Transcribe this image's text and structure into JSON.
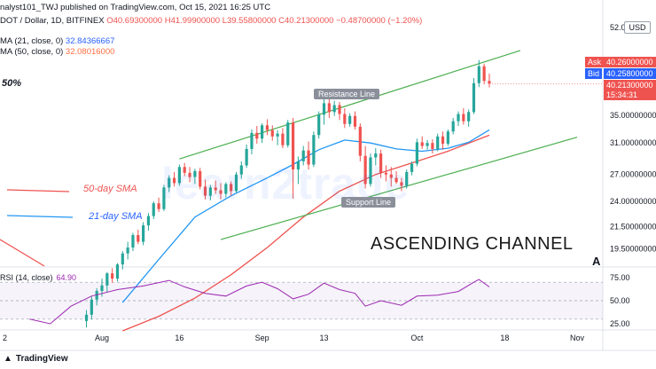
{
  "header": {
    "line1": "nalyst101_TWJ published on TradingView.com, Oct 15, 2021 16:25 UTC",
    "symbol": "DOT / Dollar, 1D, BITFINEX",
    "ohlc": {
      "o": "O40.69300000",
      "h": "H41.99900000",
      "l": "L39.55800000",
      "c": "C40.21300000",
      "chg": "−0.48700000 (−1.20%)"
    },
    "ma21_label": "MA (21, close, 0)",
    "ma21_value": "32.84366667",
    "ma50_label": "MA (50, close, 0)",
    "ma50_value": "32.08016000",
    "pct_label": "50%"
  },
  "price_scale": {
    "currency": "USD",
    "ask_label": "Ask",
    "ask_value": "40.26000000",
    "bid_label": "Bid",
    "bid_value": "40.25800000",
    "last_value": "40.21300000",
    "countdown": "15:34:31"
  },
  "annotations": {
    "channel": "ASCENDING CHANNEL",
    "sma50": "50-day SMA",
    "sma21": "21-day SMA",
    "resistance": "Resistance Line",
    "support": "Support Line",
    "marker": "A",
    "watermark": "learn2trade"
  },
  "rsi": {
    "label": "RSI (14, close)",
    "value": "64.90"
  },
  "footer": {
    "brand": "TradingView"
  },
  "colors": {
    "up": "#26a69a",
    "down": "#ef5350",
    "ma21": "#2196f3",
    "ma50": "#ef5350",
    "channel": "#4caf50",
    "rsi": "#9c27b0"
  },
  "chart_data": {
    "type": "candlestick",
    "title": "DOT / Dollar, 1D, BITFINEX",
    "y_ticks": [
      "52.0",
      "40.26000000",
      "35.00000000",
      "31.00000000",
      "27.00000000",
      "24.00000000",
      "21.50000000",
      "19.50000000"
    ],
    "y_tick_values": [
      52.0,
      40.26,
      35.0,
      31.0,
      27.0,
      24.0,
      21.5,
      19.5
    ],
    "y_scale": "log",
    "x_ticks": [
      "2",
      "Aug",
      "16",
      "Sep",
      "13",
      "Oct",
      "18",
      "Nov"
    ],
    "candles": [
      {
        "date": "2021-07-29",
        "o": 14.2,
        "h": 14.9,
        "l": 13.8,
        "c": 14.6
      },
      {
        "date": "2021-07-30",
        "o": 14.6,
        "h": 15.8,
        "l": 14.3,
        "c": 15.6
      },
      {
        "date": "2021-07-31",
        "o": 15.6,
        "h": 16.4,
        "l": 15.2,
        "c": 16.2
      },
      {
        "date": "2021-08-01",
        "o": 16.2,
        "h": 17.1,
        "l": 15.8,
        "c": 16.6
      },
      {
        "date": "2021-08-02",
        "o": 16.6,
        "h": 17.6,
        "l": 16.1,
        "c": 17.5
      },
      {
        "date": "2021-08-03",
        "o": 17.5,
        "h": 17.9,
        "l": 16.8,
        "c": 17.1
      },
      {
        "date": "2021-08-04",
        "o": 17.1,
        "h": 18.3,
        "l": 16.9,
        "c": 18.2
      },
      {
        "date": "2021-08-05",
        "o": 18.2,
        "h": 19.3,
        "l": 17.8,
        "c": 19.1
      },
      {
        "date": "2021-08-06",
        "o": 19.1,
        "h": 20.1,
        "l": 18.6,
        "c": 19.6
      },
      {
        "date": "2021-08-07",
        "o": 19.6,
        "h": 20.9,
        "l": 19.3,
        "c": 20.7
      },
      {
        "date": "2021-08-08",
        "o": 20.7,
        "h": 21.2,
        "l": 19.9,
        "c": 20.1
      },
      {
        "date": "2021-08-09",
        "o": 20.1,
        "h": 21.9,
        "l": 19.8,
        "c": 21.6
      },
      {
        "date": "2021-08-10",
        "o": 21.6,
        "h": 22.8,
        "l": 21.1,
        "c": 22.5
      },
      {
        "date": "2021-08-11",
        "o": 22.5,
        "h": 24.0,
        "l": 22.2,
        "c": 23.8
      },
      {
        "date": "2021-08-12",
        "o": 23.8,
        "h": 24.4,
        "l": 22.9,
        "c": 23.2
      },
      {
        "date": "2021-08-13",
        "o": 23.2,
        "h": 25.8,
        "l": 23.0,
        "c": 25.5
      },
      {
        "date": "2021-08-14",
        "o": 25.5,
        "h": 26.9,
        "l": 25.0,
        "c": 26.6
      },
      {
        "date": "2021-08-15",
        "o": 26.6,
        "h": 27.3,
        "l": 25.6,
        "c": 26.0
      },
      {
        "date": "2021-08-16",
        "o": 26.0,
        "h": 28.2,
        "l": 25.7,
        "c": 27.9
      },
      {
        "date": "2021-08-17",
        "o": 27.9,
        "h": 28.4,
        "l": 26.8,
        "c": 27.2
      },
      {
        "date": "2021-08-18",
        "o": 27.2,
        "h": 27.9,
        "l": 26.1,
        "c": 26.7
      },
      {
        "date": "2021-08-19",
        "o": 26.7,
        "h": 27.7,
        "l": 25.9,
        "c": 27.4
      },
      {
        "date": "2021-08-20",
        "o": 27.4,
        "h": 27.8,
        "l": 25.3,
        "c": 25.6
      },
      {
        "date": "2021-08-21",
        "o": 25.6,
        "h": 26.4,
        "l": 24.2,
        "c": 24.6
      },
      {
        "date": "2021-08-22",
        "o": 24.6,
        "h": 25.8,
        "l": 24.1,
        "c": 25.5
      },
      {
        "date": "2021-08-23",
        "o": 25.5,
        "h": 26.3,
        "l": 24.8,
        "c": 25.2
      },
      {
        "date": "2021-08-24",
        "o": 25.2,
        "h": 26.0,
        "l": 24.2,
        "c": 24.8
      },
      {
        "date": "2021-08-25",
        "o": 24.8,
        "h": 26.1,
        "l": 24.4,
        "c": 25.9
      },
      {
        "date": "2021-08-26",
        "o": 25.9,
        "h": 26.2,
        "l": 24.6,
        "c": 25.1
      },
      {
        "date": "2021-08-27",
        "o": 25.1,
        "h": 27.3,
        "l": 24.9,
        "c": 27.0
      },
      {
        "date": "2021-08-28",
        "o": 27.0,
        "h": 28.6,
        "l": 26.5,
        "c": 28.1
      },
      {
        "date": "2021-08-29",
        "o": 28.1,
        "h": 30.8,
        "l": 27.8,
        "c": 30.2
      },
      {
        "date": "2021-08-30",
        "o": 30.2,
        "h": 32.9,
        "l": 29.5,
        "c": 32.4
      },
      {
        "date": "2021-08-31",
        "o": 32.4,
        "h": 33.4,
        "l": 30.9,
        "c": 31.6
      },
      {
        "date": "2021-09-01",
        "o": 31.6,
        "h": 33.8,
        "l": 31.0,
        "c": 33.5
      },
      {
        "date": "2021-09-02",
        "o": 33.5,
        "h": 34.4,
        "l": 32.1,
        "c": 32.8
      },
      {
        "date": "2021-09-03",
        "o": 32.8,
        "h": 33.5,
        "l": 31.3,
        "c": 31.9
      },
      {
        "date": "2021-09-04",
        "o": 31.9,
        "h": 32.8,
        "l": 30.7,
        "c": 32.3
      },
      {
        "date": "2021-09-05",
        "o": 32.3,
        "h": 33.1,
        "l": 30.3,
        "c": 30.7
      },
      {
        "date": "2021-09-06",
        "o": 30.7,
        "h": 34.3,
        "l": 30.4,
        "c": 33.9
      },
      {
        "date": "2021-09-07",
        "o": 33.9,
        "h": 34.6,
        "l": 24.3,
        "c": 27.6
      },
      {
        "date": "2021-09-08",
        "o": 27.6,
        "h": 29.2,
        "l": 25.9,
        "c": 28.6
      },
      {
        "date": "2021-09-09",
        "o": 28.6,
        "h": 30.6,
        "l": 28.1,
        "c": 30.0
      },
      {
        "date": "2021-09-10",
        "o": 30.0,
        "h": 31.2,
        "l": 27.6,
        "c": 28.2
      },
      {
        "date": "2021-09-11",
        "o": 28.2,
        "h": 32.6,
        "l": 27.9,
        "c": 32.1
      },
      {
        "date": "2021-09-12",
        "o": 32.1,
        "h": 35.6,
        "l": 31.6,
        "c": 35.1
      },
      {
        "date": "2021-09-13",
        "o": 35.1,
        "h": 37.9,
        "l": 33.6,
        "c": 36.9
      },
      {
        "date": "2021-09-14",
        "o": 36.9,
        "h": 37.6,
        "l": 34.6,
        "c": 35.5
      },
      {
        "date": "2021-09-15",
        "o": 35.5,
        "h": 37.3,
        "l": 34.9,
        "c": 36.6
      },
      {
        "date": "2021-09-16",
        "o": 36.6,
        "h": 37.1,
        "l": 34.3,
        "c": 35.2
      },
      {
        "date": "2021-09-17",
        "o": 35.2,
        "h": 36.1,
        "l": 33.1,
        "c": 33.7
      },
      {
        "date": "2021-09-18",
        "o": 33.7,
        "h": 35.3,
        "l": 33.3,
        "c": 34.9
      },
      {
        "date": "2021-09-19",
        "o": 34.9,
        "h": 35.6,
        "l": 32.9,
        "c": 33.3
      },
      {
        "date": "2021-09-20",
        "o": 33.3,
        "h": 33.8,
        "l": 28.6,
        "c": 29.3
      },
      {
        "date": "2021-09-21",
        "o": 29.3,
        "h": 30.6,
        "l": 25.4,
        "c": 25.9
      },
      {
        "date": "2021-09-22",
        "o": 25.9,
        "h": 29.6,
        "l": 25.6,
        "c": 29.1
      },
      {
        "date": "2021-09-23",
        "o": 29.1,
        "h": 30.3,
        "l": 28.1,
        "c": 29.6
      },
      {
        "date": "2021-09-24",
        "o": 29.6,
        "h": 30.1,
        "l": 26.6,
        "c": 27.2
      },
      {
        "date": "2021-09-25",
        "o": 27.2,
        "h": 28.1,
        "l": 26.2,
        "c": 27.0
      },
      {
        "date": "2021-09-26",
        "o": 27.0,
        "h": 27.9,
        "l": 25.6,
        "c": 26.6
      },
      {
        "date": "2021-09-27",
        "o": 26.6,
        "h": 27.4,
        "l": 25.9,
        "c": 26.1
      },
      {
        "date": "2021-09-28",
        "o": 26.1,
        "h": 26.6,
        "l": 25.1,
        "c": 25.7
      },
      {
        "date": "2021-09-29",
        "o": 25.7,
        "h": 27.6,
        "l": 25.4,
        "c": 27.3
      },
      {
        "date": "2021-09-30",
        "o": 27.3,
        "h": 28.6,
        "l": 26.9,
        "c": 28.3
      },
      {
        "date": "2021-10-01",
        "o": 28.3,
        "h": 31.6,
        "l": 28.0,
        "c": 31.1
      },
      {
        "date": "2021-10-02",
        "o": 31.1,
        "h": 31.9,
        "l": 30.2,
        "c": 30.6
      },
      {
        "date": "2021-10-03",
        "o": 30.6,
        "h": 31.4,
        "l": 30.1,
        "c": 31.0
      },
      {
        "date": "2021-10-04",
        "o": 31.0,
        "h": 31.5,
        "l": 29.6,
        "c": 30.2
      },
      {
        "date": "2021-10-05",
        "o": 30.2,
        "h": 32.3,
        "l": 29.9,
        "c": 31.9
      },
      {
        "date": "2021-10-06",
        "o": 31.9,
        "h": 32.6,
        "l": 30.1,
        "c": 30.9
      },
      {
        "date": "2021-10-07",
        "o": 30.9,
        "h": 32.9,
        "l": 30.6,
        "c": 32.6
      },
      {
        "date": "2021-10-08",
        "o": 32.6,
        "h": 34.6,
        "l": 32.2,
        "c": 34.1
      },
      {
        "date": "2021-10-09",
        "o": 34.1,
        "h": 35.6,
        "l": 33.4,
        "c": 35.2
      },
      {
        "date": "2021-10-10",
        "o": 35.2,
        "h": 36.1,
        "l": 33.6,
        "c": 34.1
      },
      {
        "date": "2021-10-11",
        "o": 34.1,
        "h": 35.9,
        "l": 33.3,
        "c": 35.5
      },
      {
        "date": "2021-10-12",
        "o": 35.5,
        "h": 41.2,
        "l": 35.2,
        "c": 40.3
      },
      {
        "date": "2021-10-13",
        "o": 40.3,
        "h": 44.6,
        "l": 39.6,
        "c": 43.4
      },
      {
        "date": "2021-10-14",
        "o": 43.4,
        "h": 43.9,
        "l": 40.1,
        "c": 40.7
      },
      {
        "date": "2021-10-15",
        "o": 40.693,
        "h": 41.999,
        "l": 39.558,
        "c": 40.213
      }
    ],
    "ma21": [
      {
        "date": "2021-08-05",
        "v": 15.4
      },
      {
        "date": "2021-08-12",
        "v": 18.6
      },
      {
        "date": "2021-08-19",
        "v": 22.4
      },
      {
        "date": "2021-08-26",
        "v": 24.6
      },
      {
        "date": "2021-09-02",
        "v": 26.6
      },
      {
        "date": "2021-09-07",
        "v": 28.2
      },
      {
        "date": "2021-09-12",
        "v": 30.1
      },
      {
        "date": "2021-09-17",
        "v": 31.4
      },
      {
        "date": "2021-09-22",
        "v": 31.0
      },
      {
        "date": "2021-09-27",
        "v": 30.2
      },
      {
        "date": "2021-10-02",
        "v": 29.9
      },
      {
        "date": "2021-10-07",
        "v": 30.3
      },
      {
        "date": "2021-10-11",
        "v": 31.1
      },
      {
        "date": "2021-10-15",
        "v": 32.84
      }
    ],
    "ma50": [
      {
        "date": "2021-08-05",
        "v": 13.6
      },
      {
        "date": "2021-08-12",
        "v": 14.5
      },
      {
        "date": "2021-08-19",
        "v": 15.7
      },
      {
        "date": "2021-08-26",
        "v": 17.4
      },
      {
        "date": "2021-09-02",
        "v": 19.6
      },
      {
        "date": "2021-09-09",
        "v": 22.4
      },
      {
        "date": "2021-09-16",
        "v": 25.1
      },
      {
        "date": "2021-09-23",
        "v": 27.0
      },
      {
        "date": "2021-09-30",
        "v": 28.4
      },
      {
        "date": "2021-10-07",
        "v": 29.9
      },
      {
        "date": "2021-10-15",
        "v": 32.08
      }
    ],
    "channel_upper": [
      {
        "date": "2021-08-16",
        "v": 28.9
      },
      {
        "date": "2021-10-21",
        "v": 46.5
      }
    ],
    "channel_lower": [
      {
        "date": "2021-08-24",
        "v": 20.3
      },
      {
        "date": "2021-11-01",
        "v": 31.8
      }
    ],
    "rsi_series": [
      {
        "date": "2021-07-18",
        "v": 30
      },
      {
        "date": "2021-07-22",
        "v": 25
      },
      {
        "date": "2021-07-26",
        "v": 44
      },
      {
        "date": "2021-07-30",
        "v": 55
      },
      {
        "date": "2021-08-04",
        "v": 62
      },
      {
        "date": "2021-08-09",
        "v": 66
      },
      {
        "date": "2021-08-14",
        "v": 72
      },
      {
        "date": "2021-08-17",
        "v": 65
      },
      {
        "date": "2021-08-21",
        "v": 58
      },
      {
        "date": "2021-08-25",
        "v": 55
      },
      {
        "date": "2021-08-29",
        "v": 66
      },
      {
        "date": "2021-09-01",
        "v": 70
      },
      {
        "date": "2021-09-04",
        "v": 63
      },
      {
        "date": "2021-09-07",
        "v": 52
      },
      {
        "date": "2021-09-10",
        "v": 57
      },
      {
        "date": "2021-09-13",
        "v": 69
      },
      {
        "date": "2021-09-16",
        "v": 62
      },
      {
        "date": "2021-09-19",
        "v": 58
      },
      {
        "date": "2021-09-21",
        "v": 44
      },
      {
        "date": "2021-09-24",
        "v": 50
      },
      {
        "date": "2021-09-28",
        "v": 45
      },
      {
        "date": "2021-10-01",
        "v": 55
      },
      {
        "date": "2021-10-05",
        "v": 56
      },
      {
        "date": "2021-10-09",
        "v": 60
      },
      {
        "date": "2021-10-12",
        "v": 70
      },
      {
        "date": "2021-10-13",
        "v": 73
      },
      {
        "date": "2021-10-15",
        "v": 64.9
      }
    ],
    "rsi_ticks": [
      "75.00",
      "50.00",
      "25.00"
    ],
    "rsi_tick_values": [
      75,
      50,
      25
    ],
    "rsi_band": [
      30,
      70
    ]
  }
}
